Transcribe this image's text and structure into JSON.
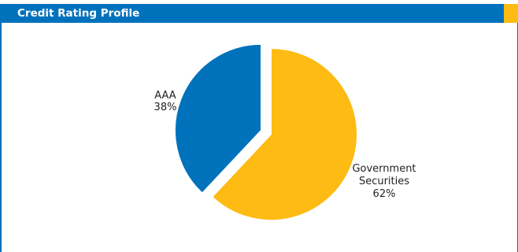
{
  "header": {
    "title": "Credit Rating Profile"
  },
  "colors": {
    "header_bg": "#0072bc",
    "accent": "#fdbb13"
  },
  "chart_data": {
    "type": "pie",
    "title": "Credit Rating Profile",
    "slices": [
      {
        "label_lines": [
          "AAA",
          "38%"
        ],
        "value": 38,
        "color": "#0072bc"
      },
      {
        "label_lines": [
          "Government",
          "Securities",
          "62%"
        ],
        "value": 62,
        "color": "#fdbb13"
      }
    ]
  }
}
